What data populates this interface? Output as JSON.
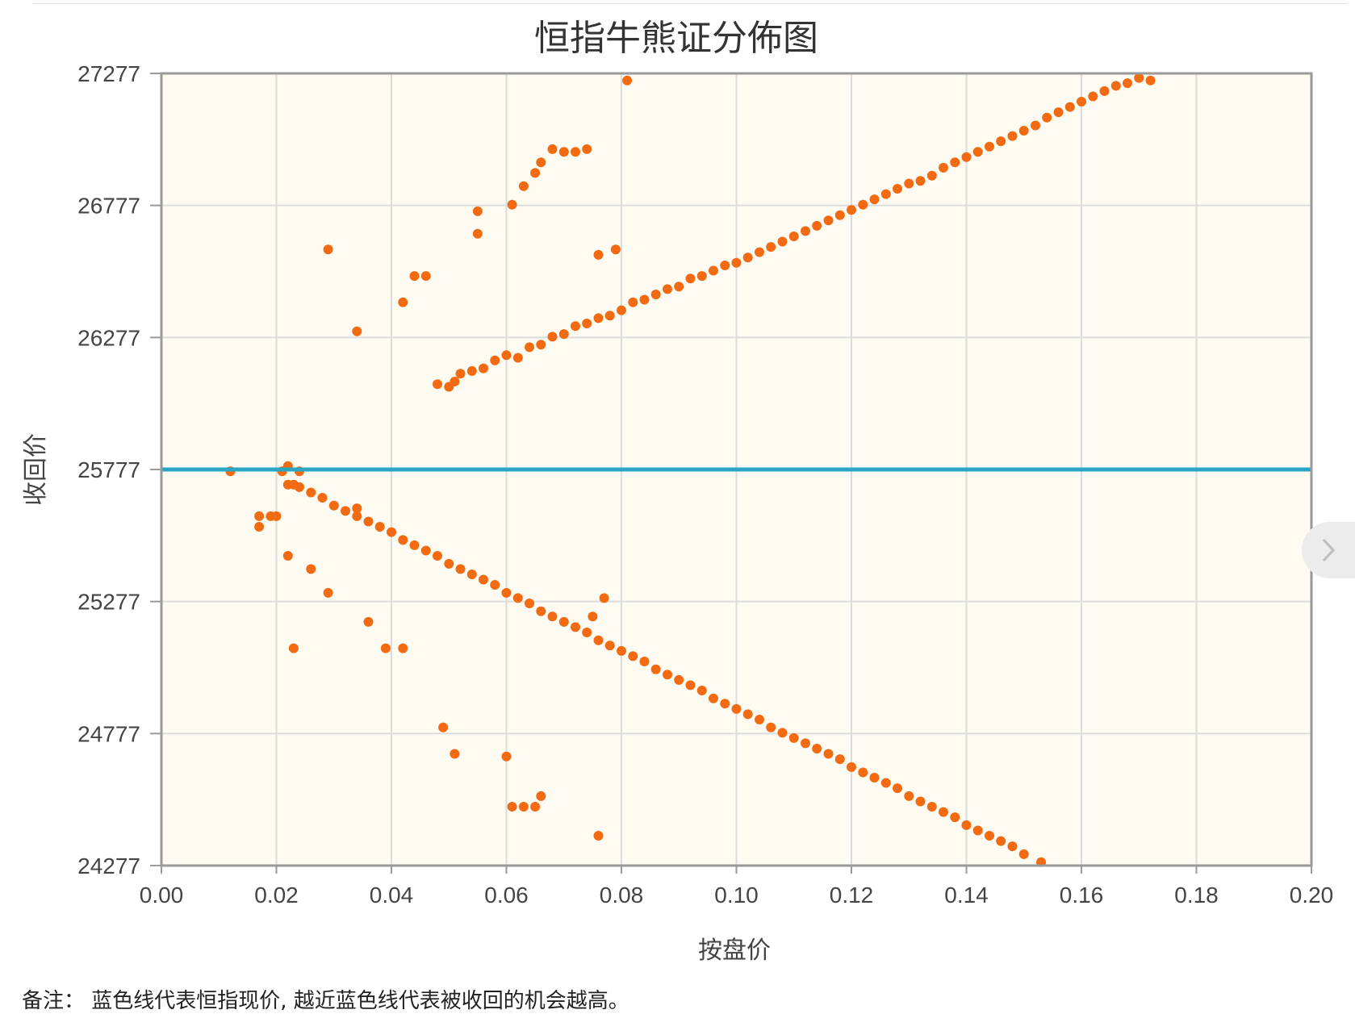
{
  "note": "备注： 蓝色线代表恒指现价, 越近蓝色线代表被收回的机会越高。",
  "nav": {
    "icon": "chevron-right-icon"
  },
  "colors": {
    "points": "#f26a12",
    "current_price_line": "#2aa5c6",
    "plot_bg": "#fdfbf2",
    "grid": "#dcdcdc",
    "axis": "#9a9a9a"
  },
  "chart_data": {
    "type": "scatter",
    "title": "恒指牛熊证分佈图",
    "xlabel": "按盘价",
    "ylabel": "收回价",
    "xlim": [
      0,
      0.2
    ],
    "ylim": [
      24277,
      27277
    ],
    "x_ticks": [
      "0.00",
      "0.02",
      "0.04",
      "0.06",
      "0.08",
      "0.10",
      "0.12",
      "0.14",
      "0.16",
      "0.18",
      "0.20"
    ],
    "y_ticks": [
      "27277",
      "26777",
      "26277",
      "25777",
      "25277",
      "24777",
      "24277"
    ],
    "grid": true,
    "legend": "none",
    "reference_line": {
      "label": "恒指现价",
      "y": 25777
    },
    "series": [
      {
        "points": [
          [
            0.048,
            26100
          ],
          [
            0.05,
            26090
          ],
          [
            0.051,
            26110
          ],
          [
            0.052,
            26140
          ],
          [
            0.054,
            26150
          ],
          [
            0.056,
            26160
          ],
          [
            0.058,
            26190
          ],
          [
            0.06,
            26210
          ],
          [
            0.062,
            26200
          ],
          [
            0.064,
            26240
          ],
          [
            0.066,
            26250
          ],
          [
            0.068,
            26280
          ],
          [
            0.07,
            26290
          ],
          [
            0.072,
            26320
          ],
          [
            0.074,
            26330
          ],
          [
            0.076,
            26350
          ],
          [
            0.078,
            26360
          ],
          [
            0.08,
            26380
          ],
          [
            0.082,
            26410
          ],
          [
            0.084,
            26420
          ],
          [
            0.086,
            26440
          ],
          [
            0.088,
            26460
          ],
          [
            0.09,
            26470
          ],
          [
            0.092,
            26500
          ],
          [
            0.094,
            26510
          ],
          [
            0.096,
            26530
          ],
          [
            0.098,
            26550
          ],
          [
            0.1,
            26560
          ],
          [
            0.102,
            26580
          ],
          [
            0.104,
            26600
          ],
          [
            0.106,
            26620
          ],
          [
            0.108,
            26640
          ],
          [
            0.11,
            26660
          ],
          [
            0.112,
            26680
          ],
          [
            0.114,
            26700
          ],
          [
            0.116,
            26720
          ],
          [
            0.118,
            26740
          ],
          [
            0.12,
            26760
          ],
          [
            0.122,
            26780
          ],
          [
            0.124,
            26800
          ],
          [
            0.126,
            26820
          ],
          [
            0.128,
            26840
          ],
          [
            0.13,
            26860
          ],
          [
            0.132,
            26870
          ],
          [
            0.134,
            26890
          ],
          [
            0.136,
            26920
          ],
          [
            0.138,
            26940
          ],
          [
            0.14,
            26960
          ],
          [
            0.142,
            26980
          ],
          [
            0.144,
            27000
          ],
          [
            0.146,
            27020
          ],
          [
            0.148,
            27040
          ],
          [
            0.15,
            27060
          ],
          [
            0.152,
            27080
          ],
          [
            0.154,
            27110
          ],
          [
            0.156,
            27130
          ],
          [
            0.158,
            27150
          ],
          [
            0.16,
            27170
          ],
          [
            0.162,
            27190
          ],
          [
            0.164,
            27210
          ],
          [
            0.166,
            27230
          ],
          [
            0.168,
            27240
          ],
          [
            0.17,
            27260
          ],
          [
            0.172,
            27250
          ],
          [
            0.029,
            26610
          ],
          [
            0.034,
            26300
          ],
          [
            0.042,
            26410
          ],
          [
            0.044,
            26510
          ],
          [
            0.046,
            26510
          ],
          [
            0.055,
            26755
          ],
          [
            0.055,
            26670
          ],
          [
            0.061,
            26780
          ],
          [
            0.063,
            26850
          ],
          [
            0.065,
            26900
          ],
          [
            0.066,
            26940
          ],
          [
            0.068,
            26990
          ],
          [
            0.07,
            26980
          ],
          [
            0.072,
            26980
          ],
          [
            0.074,
            26990
          ],
          [
            0.076,
            26590
          ],
          [
            0.079,
            26610
          ],
          [
            0.081,
            27250
          ]
        ]
      },
      {
        "points": [
          [
            0.024,
            25710
          ],
          [
            0.026,
            25690
          ],
          [
            0.028,
            25670
          ],
          [
            0.03,
            25640
          ],
          [
            0.032,
            25620
          ],
          [
            0.034,
            25600
          ],
          [
            0.036,
            25580
          ],
          [
            0.038,
            25560
          ],
          [
            0.04,
            25540
          ],
          [
            0.042,
            25510
          ],
          [
            0.044,
            25490
          ],
          [
            0.046,
            25470
          ],
          [
            0.048,
            25450
          ],
          [
            0.05,
            25420
          ],
          [
            0.052,
            25400
          ],
          [
            0.054,
            25380
          ],
          [
            0.056,
            25360
          ],
          [
            0.058,
            25340
          ],
          [
            0.06,
            25310
          ],
          [
            0.062,
            25290
          ],
          [
            0.064,
            25270
          ],
          [
            0.066,
            25240
          ],
          [
            0.068,
            25220
          ],
          [
            0.07,
            25200
          ],
          [
            0.072,
            25180
          ],
          [
            0.074,
            25160
          ],
          [
            0.076,
            25130
          ],
          [
            0.078,
            25110
          ],
          [
            0.08,
            25090
          ],
          [
            0.082,
            25070
          ],
          [
            0.084,
            25050
          ],
          [
            0.086,
            25020
          ],
          [
            0.088,
            25000
          ],
          [
            0.09,
            24980
          ],
          [
            0.092,
            24960
          ],
          [
            0.094,
            24940
          ],
          [
            0.096,
            24910
          ],
          [
            0.098,
            24890
          ],
          [
            0.1,
            24870
          ],
          [
            0.102,
            24850
          ],
          [
            0.104,
            24830
          ],
          [
            0.106,
            24800
          ],
          [
            0.108,
            24780
          ],
          [
            0.11,
            24760
          ],
          [
            0.112,
            24740
          ],
          [
            0.114,
            24720
          ],
          [
            0.116,
            24700
          ],
          [
            0.118,
            24680
          ],
          [
            0.12,
            24650
          ],
          [
            0.122,
            24630
          ],
          [
            0.124,
            24610
          ],
          [
            0.126,
            24590
          ],
          [
            0.128,
            24570
          ],
          [
            0.13,
            24540
          ],
          [
            0.132,
            24520
          ],
          [
            0.134,
            24500
          ],
          [
            0.136,
            24480
          ],
          [
            0.138,
            24460
          ],
          [
            0.14,
            24430
          ],
          [
            0.142,
            24410
          ],
          [
            0.144,
            24390
          ],
          [
            0.146,
            24370
          ],
          [
            0.148,
            24350
          ],
          [
            0.15,
            24320
          ],
          [
            0.153,
            24290
          ],
          [
            0.012,
            25770
          ],
          [
            0.017,
            25600
          ],
          [
            0.017,
            25560
          ],
          [
            0.019,
            25600
          ],
          [
            0.02,
            25600
          ],
          [
            0.021,
            25770
          ],
          [
            0.022,
            25790
          ],
          [
            0.022,
            25720
          ],
          [
            0.023,
            25720
          ],
          [
            0.024,
            25770
          ],
          [
            0.022,
            25450
          ],
          [
            0.023,
            25100
          ],
          [
            0.026,
            25400
          ],
          [
            0.029,
            25310
          ],
          [
            0.034,
            25630
          ],
          [
            0.036,
            25200
          ],
          [
            0.039,
            25100
          ],
          [
            0.042,
            25100
          ],
          [
            0.049,
            24800
          ],
          [
            0.051,
            24700
          ],
          [
            0.06,
            24690
          ],
          [
            0.061,
            24500
          ],
          [
            0.063,
            24500
          ],
          [
            0.065,
            24500
          ],
          [
            0.066,
            24540
          ],
          [
            0.075,
            25220
          ],
          [
            0.076,
            24390
          ],
          [
            0.077,
            25290
          ]
        ]
      }
    ]
  }
}
